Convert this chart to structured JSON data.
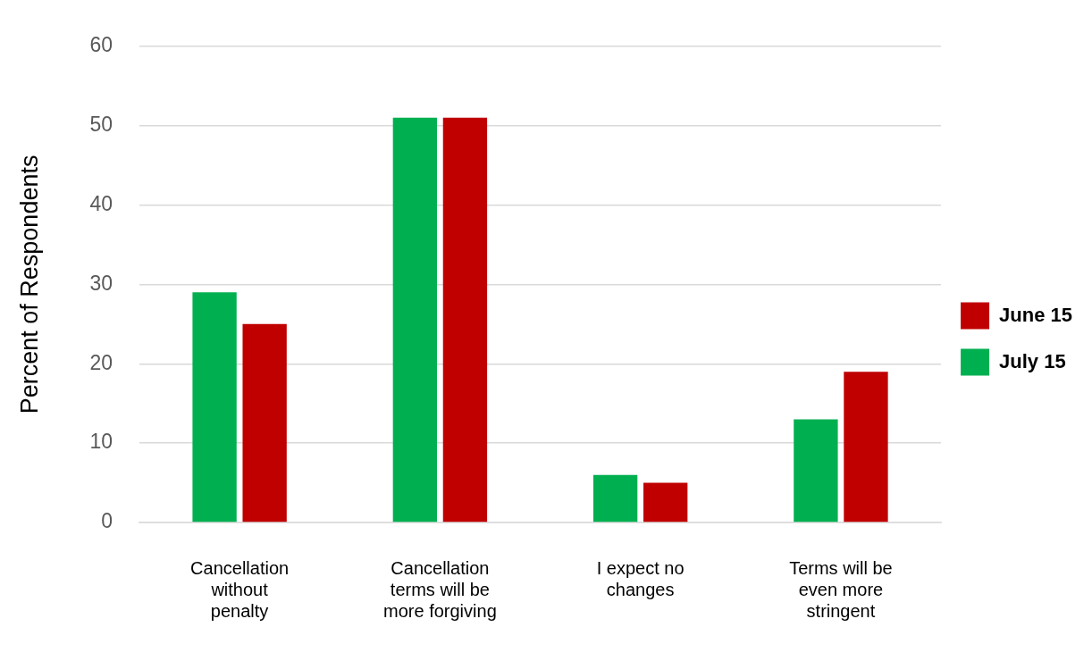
{
  "chart_data": {
    "type": "bar",
    "ylabel": "Percent of Respondents",
    "categories": [
      "Cancellation without penalty",
      "Cancellation terms will be more forgiving",
      "I expect no changes",
      "Terms will be even more stringent"
    ],
    "series": [
      {
        "name": "July 15",
        "color": "#00b050",
        "values": [
          29,
          51,
          6,
          13
        ]
      },
      {
        "name": "June 15",
        "color": "#c00000",
        "values": [
          25,
          51,
          5,
          19
        ]
      }
    ],
    "ylim": [
      0,
      60
    ],
    "yticks": [
      0,
      10,
      20,
      30,
      40,
      50,
      60
    ],
    "grid": "y",
    "legend": "right"
  }
}
